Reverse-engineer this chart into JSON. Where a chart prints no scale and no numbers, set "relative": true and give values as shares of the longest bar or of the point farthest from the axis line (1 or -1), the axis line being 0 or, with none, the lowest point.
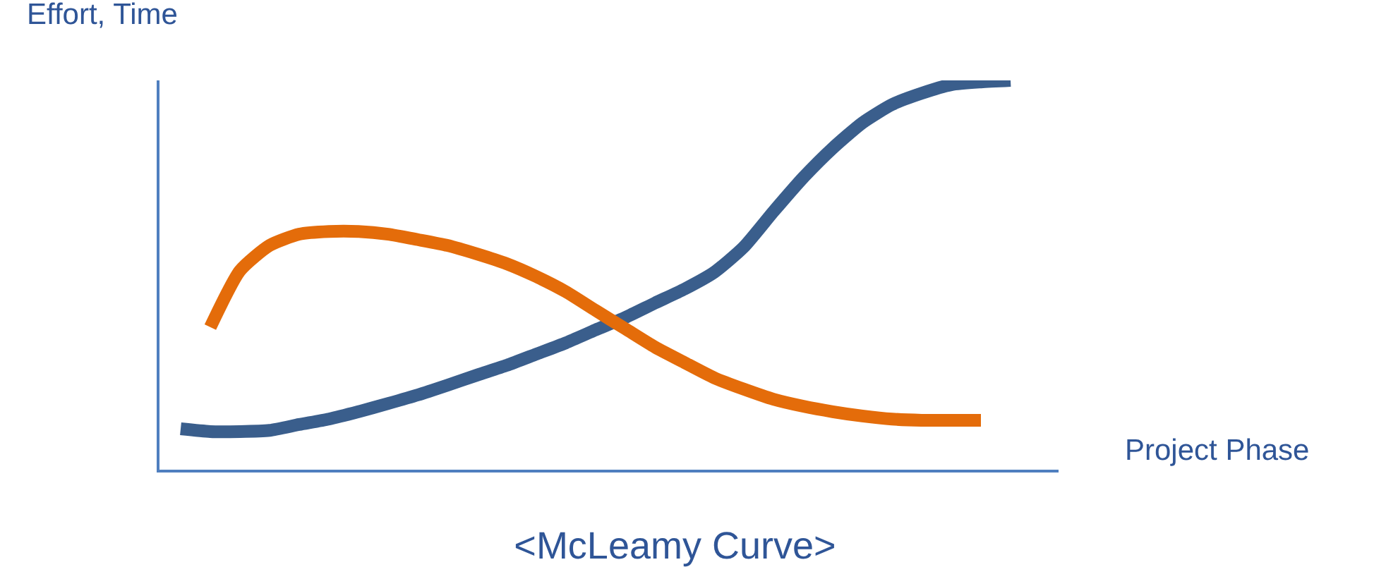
{
  "chart_data": {
    "type": "line",
    "title": "<McLeamy Curve>",
    "xlabel": "Project Phase",
    "ylabel": "Effort, Time",
    "relative": true,
    "marker": "none",
    "line_style": "solid",
    "categories": [
      null,
      null,
      null,
      null,
      null,
      null,
      null,
      null,
      null,
      null,
      null,
      null,
      null,
      null,
      null,
      null,
      null,
      null,
      null,
      null,
      null,
      null,
      null,
      null,
      null,
      null,
      null,
      null,
      null
    ],
    "series": [
      {
        "color": "#3a5e8c",
        "values": [
          0.105,
          0.098,
          0.098,
          0.101,
          0.116,
          0.13,
          0.149,
          0.17,
          0.192,
          0.217,
          0.243,
          0.268,
          0.297,
          0.326,
          0.359,
          0.391,
          0.428,
          0.464,
          0.507,
          0.572,
          0.663,
          0.75,
          0.826,
          0.891,
          0.938,
          0.967,
          0.989,
          0.996,
          1
        ]
      },
      {
        "color": "#e46c0a",
        "values": [
          null,
          0.366,
          0.511,
          0.576,
          0.605,
          0.612,
          0.612,
          0.605,
          0.591,
          0.576,
          0.554,
          0.529,
          0.496,
          0.457,
          0.409,
          0.362,
          0.315,
          0.275,
          0.236,
          0.207,
          0.181,
          0.163,
          0.149,
          0.138,
          0.13,
          0.127,
          0.127,
          0.127,
          null
        ]
      }
    ]
  }
}
